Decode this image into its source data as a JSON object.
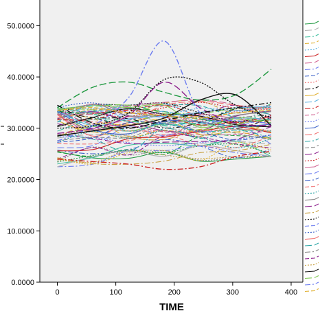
{
  "chart_data": {
    "type": "line",
    "title": "",
    "xlabel": "TIME",
    "ylabel": "",
    "xlim": [
      -30,
      420
    ],
    "ylim": [
      0,
      55
    ],
    "xticks": [
      0,
      100,
      200,
      300,
      400
    ],
    "yticks": [
      0,
      10,
      20,
      30,
      40,
      50
    ],
    "ytick_labels": [
      "0.0000",
      "10.0000",
      "20.0000",
      "30.0000",
      "40.0000",
      "50.0000"
    ],
    "grid": false,
    "legend": "right",
    "series_count": 72,
    "x": [
      0,
      61,
      122,
      183,
      244,
      305,
      366
    ],
    "highlight_series": [
      {
        "color": "#6b7cf0",
        "dash": "dashdot",
        "values": [
          27.5,
          30.5,
          36.0,
          47.0,
          33.0,
          31.5,
          31.0
        ]
      },
      {
        "color": "#1f9940",
        "dash": "longdash",
        "values": [
          34.0,
          38.0,
          39.0,
          37.0,
          35.5,
          36.5,
          41.5
        ]
      },
      {
        "color": "#111111",
        "dash": "dot",
        "values": [
          30.0,
          30.5,
          33.0,
          39.5,
          39.0,
          34.5,
          32.0
        ]
      },
      {
        "color": "#111111",
        "dash": "solid",
        "values": [
          28.5,
          29.5,
          30.5,
          32.0,
          35.5,
          36.5,
          30.5
        ]
      },
      {
        "color": "#8a1c8a",
        "dash": "longdash",
        "values": [
          29.0,
          30.0,
          32.5,
          39.0,
          34.0,
          31.0,
          30.5
        ]
      },
      {
        "color": "#cc2222",
        "dash": "dashdot",
        "values": [
          24.0,
          23.5,
          23.0,
          22.0,
          22.5,
          24.5,
          25.5
        ]
      },
      {
        "color": "#111111",
        "dash": "dashdot",
        "values": [
          34.5,
          31.0,
          30.0,
          31.5,
          33.0,
          34.0,
          35.0
        ]
      },
      {
        "color": "#e0b030",
        "dash": "dash",
        "values": [
          33.5,
          34.0,
          33.0,
          32.5,
          32.0,
          33.0,
          33.5
        ]
      }
    ],
    "band": {
      "low": [
        22.5,
        23.0,
        23.0,
        22.5,
        23.5,
        24.0,
        24.5
      ],
      "high": [
        37.5,
        35.5,
        34.5,
        35.5,
        35.5,
        34.5,
        38.0
      ]
    }
  },
  "palette": [
    "#1f9940",
    "#6b7cf0",
    "#111111",
    "#cc2222",
    "#8a1c8a",
    "#e0b030",
    "#2aa5a5",
    "#b0b0b0",
    "#3a60c8",
    "#7ec850",
    "#d06090",
    "#c8a040",
    "#5ab0e0",
    "#888888",
    "#40c0a0",
    "#f07070"
  ]
}
